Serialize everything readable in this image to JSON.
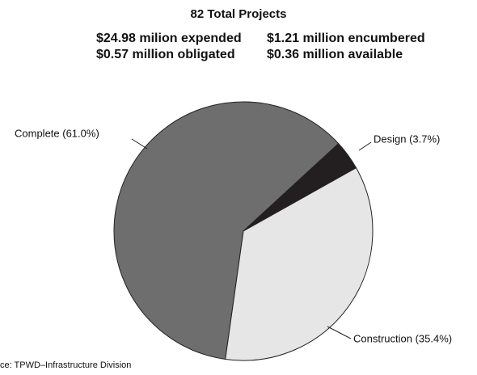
{
  "chart_data": {
    "type": "pie",
    "title": "82 Total Projects",
    "subtitle_lines": [
      "$24.98 milion expended",
      "$1.21 million encumbered",
      "$0.57 million obligated",
      "$0.36 million available"
    ],
    "values": [
      61.0,
      3.7,
      35.4
    ],
    "value_labels": [
      "Complete (61.0%)",
      "Design (3.7%)",
      "Construction (35.4%)"
    ],
    "colors": [
      "#6e6e6e",
      "#231f20",
      "#e6e6e6"
    ],
    "source": "ce: TPWD–Infrastructure Division"
  }
}
